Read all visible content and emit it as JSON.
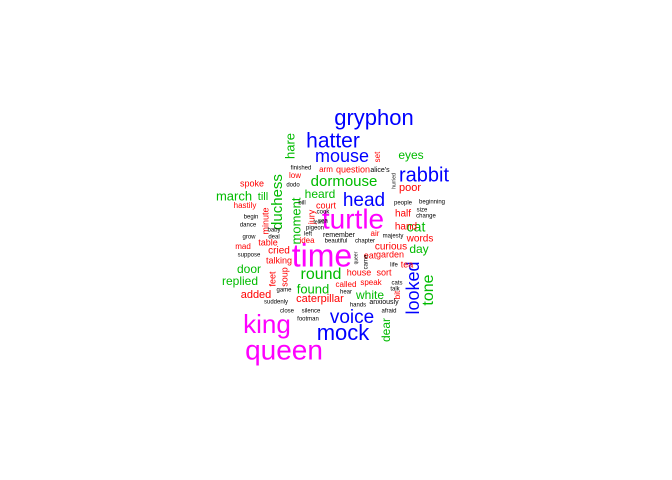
{
  "chart_data": {
    "type": "wordcloud",
    "title": "",
    "colors": {
      "highest": "#ff00ff",
      "high": "#0000ff",
      "mid": "#00bb00",
      "low": "#ff0000",
      "lowest": "#000000"
    },
    "words": [
      {
        "text": "time",
        "freq": 5,
        "tier": "highest"
      },
      {
        "text": "queen",
        "freq": 5,
        "tier": "highest"
      },
      {
        "text": "king",
        "freq": 5,
        "tier": "highest"
      },
      {
        "text": "turtle",
        "freq": 5,
        "tier": "highest"
      },
      {
        "text": "mock",
        "freq": 4,
        "tier": "high"
      },
      {
        "text": "gryphon",
        "freq": 4,
        "tier": "high"
      },
      {
        "text": "hatter",
        "freq": 4,
        "tier": "high"
      },
      {
        "text": "voice",
        "freq": 4,
        "tier": "high"
      },
      {
        "text": "head",
        "freq": 4,
        "tier": "high"
      },
      {
        "text": "rabbit",
        "freq": 4,
        "tier": "high"
      },
      {
        "text": "mouse",
        "freq": 4,
        "tier": "high"
      },
      {
        "text": "looked",
        "freq": 4,
        "tier": "high"
      },
      {
        "text": "round",
        "freq": 3,
        "tier": "mid"
      },
      {
        "text": "dormouse",
        "freq": 3,
        "tier": "mid"
      },
      {
        "text": "duchess",
        "freq": 3,
        "tier": "mid"
      },
      {
        "text": "tone",
        "freq": 3,
        "tier": "mid"
      },
      {
        "text": "march",
        "freq": 3,
        "tier": "mid"
      },
      {
        "text": "hare",
        "freq": 3,
        "tier": "mid"
      },
      {
        "text": "eyes",
        "freq": 3,
        "tier": "mid"
      },
      {
        "text": "cat",
        "freq": 3,
        "tier": "mid"
      },
      {
        "text": "found",
        "freq": 3,
        "tier": "mid"
      },
      {
        "text": "white",
        "freq": 3,
        "tier": "mid"
      },
      {
        "text": "door",
        "freq": 3,
        "tier": "mid"
      },
      {
        "text": "replied",
        "freq": 3,
        "tier": "mid"
      },
      {
        "text": "heard",
        "freq": 3,
        "tier": "mid"
      },
      {
        "text": "moment",
        "freq": 3,
        "tier": "mid"
      },
      {
        "text": "day",
        "freq": 3,
        "tier": "mid"
      },
      {
        "text": "dear",
        "freq": 3,
        "tier": "mid"
      },
      {
        "text": "till",
        "freq": 3,
        "tier": "mid"
      },
      {
        "text": "caterpillar",
        "freq": 2,
        "tier": "low"
      },
      {
        "text": "added",
        "freq": 2,
        "tier": "low"
      },
      {
        "text": "poor",
        "freq": 2,
        "tier": "low"
      },
      {
        "text": "half",
        "freq": 2,
        "tier": "low"
      },
      {
        "text": "hand",
        "freq": 2,
        "tier": "low"
      },
      {
        "text": "words",
        "freq": 2,
        "tier": "low"
      },
      {
        "text": "curious",
        "freq": 2,
        "tier": "low"
      },
      {
        "text": "garden",
        "freq": 2,
        "tier": "low"
      },
      {
        "text": "tea",
        "freq": 2,
        "tier": "low"
      },
      {
        "text": "sort",
        "freq": 2,
        "tier": "low"
      },
      {
        "text": "house",
        "freq": 2,
        "tier": "low"
      },
      {
        "text": "called",
        "freq": 2,
        "tier": "low"
      },
      {
        "text": "speak",
        "freq": 2,
        "tier": "low"
      },
      {
        "text": "cried",
        "freq": 2,
        "tier": "low"
      },
      {
        "text": "table",
        "freq": 2,
        "tier": "low"
      },
      {
        "text": "talking",
        "freq": 2,
        "tier": "low"
      },
      {
        "text": "spoke",
        "freq": 2,
        "tier": "low"
      },
      {
        "text": "hastily",
        "freq": 2,
        "tier": "low"
      },
      {
        "text": "court",
        "freq": 2,
        "tier": "low"
      },
      {
        "text": "arm",
        "freq": 2,
        "tier": "low"
      },
      {
        "text": "question",
        "freq": 2,
        "tier": "low"
      },
      {
        "text": "low",
        "freq": 2,
        "tier": "low"
      },
      {
        "text": "mad",
        "freq": 2,
        "tier": "low"
      },
      {
        "text": "feet",
        "freq": 2,
        "tier": "low"
      },
      {
        "text": "soup",
        "freq": 2,
        "tier": "low"
      },
      {
        "text": "idea",
        "freq": 2,
        "tier": "low"
      },
      {
        "text": "eat",
        "freq": 2,
        "tier": "low"
      },
      {
        "text": "air",
        "freq": 2,
        "tier": "low"
      },
      {
        "text": "jury",
        "freq": 2,
        "tier": "low"
      },
      {
        "text": "minute",
        "freq": 2,
        "tier": "low"
      },
      {
        "text": "set",
        "freq": 2,
        "tier": "low"
      },
      {
        "text": "bit",
        "freq": 2,
        "tier": "low"
      },
      {
        "text": "alice's",
        "freq": 1,
        "tier": "lowest"
      },
      {
        "text": "finished",
        "freq": 1,
        "tier": "lowest"
      },
      {
        "text": "dodo",
        "freq": 1,
        "tier": "lowest"
      },
      {
        "text": "bill",
        "freq": 1,
        "tier": "lowest"
      },
      {
        "text": "cook",
        "freq": 1,
        "tier": "lowest"
      },
      {
        "text": "sea",
        "freq": 1,
        "tier": "lowest"
      },
      {
        "text": "pigeon",
        "freq": 1,
        "tier": "lowest"
      },
      {
        "text": "left",
        "freq": 1,
        "tier": "lowest"
      },
      {
        "text": "remember",
        "freq": 1,
        "tier": "lowest"
      },
      {
        "text": "beautiful",
        "freq": 1,
        "tier": "lowest"
      },
      {
        "text": "chapter",
        "freq": 1,
        "tier": "lowest"
      },
      {
        "text": "majesty",
        "freq": 1,
        "tier": "lowest"
      },
      {
        "text": "people",
        "freq": 1,
        "tier": "lowest"
      },
      {
        "text": "beginning",
        "freq": 1,
        "tier": "lowest"
      },
      {
        "text": "size",
        "freq": 1,
        "tier": "lowest"
      },
      {
        "text": "change",
        "freq": 1,
        "tier": "lowest"
      },
      {
        "text": "begin",
        "freq": 1,
        "tier": "lowest"
      },
      {
        "text": "dance",
        "freq": 1,
        "tier": "lowest"
      },
      {
        "text": "grow",
        "freq": 1,
        "tier": "lowest"
      },
      {
        "text": "baby",
        "freq": 1,
        "tier": "lowest"
      },
      {
        "text": "deal",
        "freq": 1,
        "tier": "lowest"
      },
      {
        "text": "suppose",
        "freq": 1,
        "tier": "lowest"
      },
      {
        "text": "life",
        "freq": 1,
        "tier": "lowest"
      },
      {
        "text": "cats",
        "freq": 1,
        "tier": "lowest"
      },
      {
        "text": "talk",
        "freq": 1,
        "tier": "lowest"
      },
      {
        "text": "game",
        "freq": 1,
        "tier": "lowest"
      },
      {
        "text": "hear",
        "freq": 1,
        "tier": "lowest"
      },
      {
        "text": "hands",
        "freq": 1,
        "tier": "lowest"
      },
      {
        "text": "anxiously",
        "freq": 1,
        "tier": "lowest"
      },
      {
        "text": "suddenly",
        "freq": 1,
        "tier": "lowest"
      },
      {
        "text": "close",
        "freq": 1,
        "tier": "lowest"
      },
      {
        "text": "silence",
        "freq": 1,
        "tier": "lowest"
      },
      {
        "text": "footman",
        "freq": 1,
        "tier": "lowest"
      },
      {
        "text": "afraid",
        "freq": 1,
        "tier": "lowest"
      },
      {
        "text": "queer",
        "freq": 1,
        "tier": "lowest"
      },
      {
        "text": "came",
        "freq": 1,
        "tier": "lowest"
      },
      {
        "text": "hurried",
        "freq": 1,
        "tier": "lowest"
      },
      {
        "text": "tears",
        "freq": 1,
        "tier": "lowest"
      }
    ]
  }
}
